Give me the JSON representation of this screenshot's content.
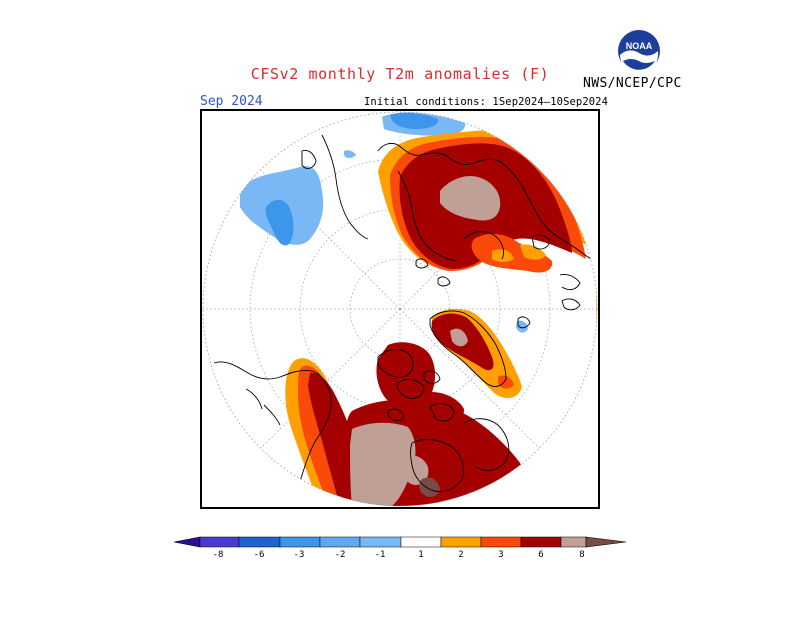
{
  "header": {
    "title": "CFSv2 monthly T2m anomalies (F)",
    "agency": "NWS/NCEP/CPC",
    "logo_text": "NOAA"
  },
  "map": {
    "month_label": "Sep 2024",
    "initial_conditions": "Initial conditions: 1Sep2024–10Sep2024",
    "projection": "north-polar-stereographic"
  },
  "legend": {
    "ticks": [
      "-8",
      "-6",
      "-3",
      "-2",
      "-1",
      "1",
      "2",
      "3",
      "6",
      "8"
    ],
    "colors": {
      "below_-8": "#2b0f9a",
      "-8_to_-6": "#4a3ad4",
      "-6_to_-3": "#1e64d0",
      "-3_to_-2": "#3c96ec",
      "-2_to_-1": "#7ab8f5",
      "-1_to_1": "#ffffff",
      "1_to_2": "#ffa000",
      "2_to_3": "#fa4a0a",
      "3_to_6": "#a50000",
      "6_to_8": "#c0a096",
      "above_8": "#7a4a44"
    }
  }
}
